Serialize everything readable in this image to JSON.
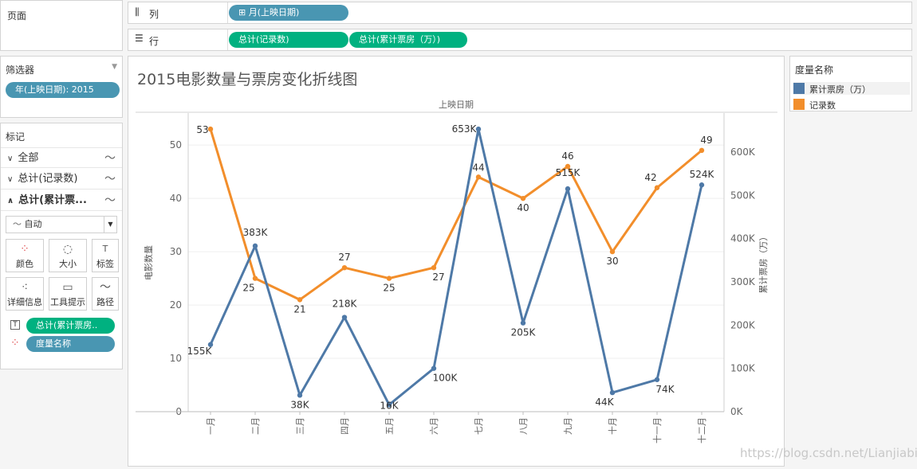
{
  "pages": {
    "title": "页面"
  },
  "shelves": {
    "columns_label": "列",
    "columns_pill": "月(上映日期)",
    "rows_label": "行",
    "rows_pill_1": "总计(记录数)",
    "rows_pill_2": "总计(累计票房（万）)"
  },
  "filters": {
    "title": "筛选器",
    "pill": "年(上映日期): 2015"
  },
  "marks": {
    "title": "标记",
    "all": "全部",
    "row1": "总计(记录数)",
    "row2": "总计(累计票...",
    "dropdown": "自动",
    "cards": [
      "颜色",
      "大小",
      "标签",
      "详细信息",
      "工具提示",
      "路径"
    ],
    "pill_label": "总计(累计票房..",
    "pill_color": "度量名称"
  },
  "legend": {
    "title": "度量名称",
    "items": [
      {
        "label": "累计票房（万）",
        "color": "#4e79a7"
      },
      {
        "label": "记录数",
        "color": "#f28e2b"
      }
    ]
  },
  "watermark": "https://blog.csdn.net/Lianjiabin",
  "chart_data": {
    "type": "line",
    "title": "2015电影数量与票房变化折线图",
    "header": "上映日期",
    "categories": [
      "一月",
      "二月",
      "三月",
      "四月",
      "五月",
      "六月",
      "七月",
      "八月",
      "九月",
      "十月",
      "十一月",
      "十二月"
    ],
    "series": [
      {
        "name": "记录数",
        "axis": "left",
        "color": "#f28e2b",
        "values": [
          53,
          25,
          21,
          27,
          25,
          27,
          44,
          40,
          46,
          30,
          42,
          49
        ],
        "labels": [
          "53",
          "25",
          "21",
          "27",
          "25",
          "27",
          "44",
          "40",
          "46",
          "30",
          "42",
          "49"
        ]
      },
      {
        "name": "累计票房（万）",
        "axis": "right",
        "color": "#4e79a7",
        "values": [
          155,
          383,
          38,
          218,
          16,
          100,
          653,
          205,
          515,
          44,
          74,
          524
        ],
        "labels": [
          "155K",
          "383K",
          "38K",
          "218K",
          "16K",
          "100K",
          "653K",
          "205K",
          "515K",
          "44K",
          "74K",
          "524K"
        ]
      }
    ],
    "ylabel": "电影数量",
    "ylim": [
      0,
      56
    ],
    "yticks": [
      0,
      10,
      20,
      30,
      40,
      50
    ],
    "y2label": "累计票房（万）",
    "y2lim": [
      0,
      690
    ],
    "y2ticks": [
      "0K",
      "100K",
      "200K",
      "300K",
      "400K",
      "500K",
      "600K"
    ],
    "y2tick_values": [
      0,
      100,
      200,
      300,
      400,
      500,
      600
    ]
  }
}
